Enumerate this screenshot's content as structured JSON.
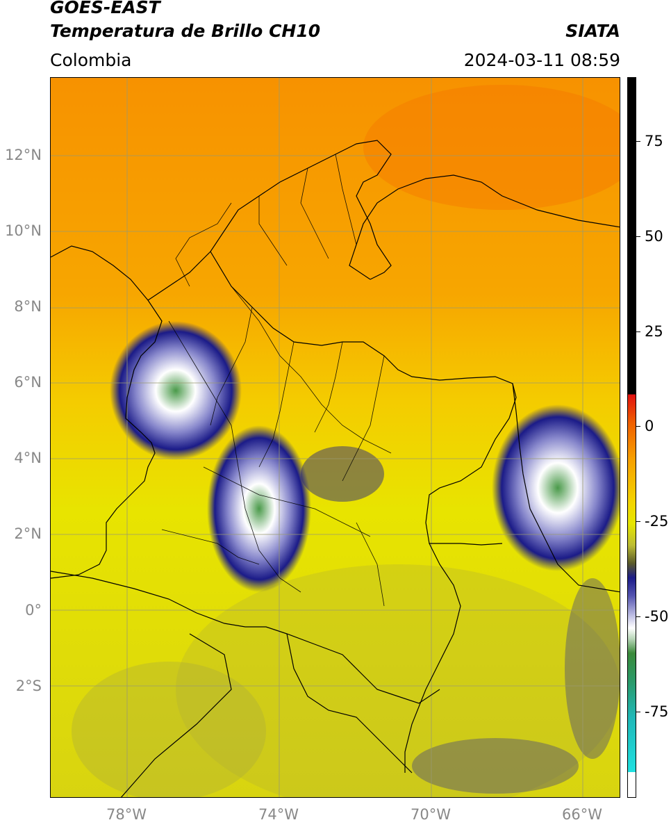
{
  "header": {
    "satellite": "GOES-EAST",
    "product": "Temperatura de Brillo CH10",
    "region": "Colombia",
    "agency": "SIATA",
    "datetime": "2024-03-11 08:59"
  },
  "map": {
    "lat_labels": [
      "12°N",
      "10°N",
      "8°N",
      "6°N",
      "4°N",
      "2°N",
      "0°",
      "2°S"
    ],
    "lon_labels": [
      "78°W",
      "74°W",
      "70°W",
      "66°W"
    ]
  },
  "colorbar": {
    "ticks": [
      "75",
      "50",
      "25",
      "0",
      "-25",
      "-50",
      "-75"
    ],
    "colors": {
      "warm": "#f5a400",
      "mid": "#e6e600",
      "cold_blue": "#1b1b88",
      "cold_green": "#3a8a3a",
      "coldest": "#20e0e0"
    }
  }
}
